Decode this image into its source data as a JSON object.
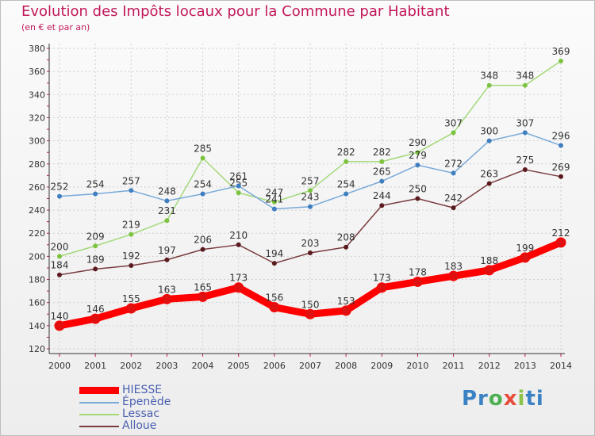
{
  "chart_data": {
    "type": "line",
    "title": "Evolution des Impôts locaux pour la Commune par Habitant",
    "subtitle": "(en € et par an)",
    "xlabel": "",
    "ylabel": "",
    "categories": [
      "2000",
      "2001",
      "2002",
      "2003",
      "2004",
      "2005",
      "2006",
      "2007",
      "2008",
      "2009",
      "2010",
      "2011",
      "2012",
      "2013",
      "2014"
    ],
    "ylim": [
      120,
      380
    ],
    "yticks": [
      120,
      140,
      160,
      180,
      200,
      220,
      240,
      260,
      280,
      300,
      320,
      340,
      360,
      380
    ],
    "grid": true,
    "series": [
      {
        "name": "HIESSE",
        "color": "#ff0000",
        "marker_color": "#e01010",
        "values": [
          140,
          146,
          155,
          163,
          165,
          173,
          156,
          150,
          153,
          173,
          178,
          183,
          188,
          199,
          212
        ]
      },
      {
        "name": "Épenède",
        "color": "#79a9d9",
        "marker_color": "#3f7fc0",
        "values": [
          252,
          254,
          257,
          248,
          254,
          261,
          241,
          243,
          254,
          265,
          279,
          272,
          300,
          307,
          296
        ]
      },
      {
        "name": "Lessac",
        "color": "#a3d97a",
        "marker_color": "#7cc440",
        "values": [
          200,
          209,
          219,
          231,
          285,
          255,
          247,
          257,
          282,
          282,
          290,
          307,
          348,
          348,
          369
        ]
      },
      {
        "name": "Alloue",
        "color": "#7a3d40",
        "marker_color": "#5a1a1e",
        "values": [
          184,
          189,
          192,
          197,
          206,
          210,
          194,
          203,
          208,
          244,
          250,
          242,
          263,
          275,
          269
        ]
      }
    ],
    "legend_position": "bottom-left"
  },
  "logo": {
    "p": "Pr",
    "o": "o",
    "x": "x",
    "i": "i",
    "t": "ti"
  }
}
